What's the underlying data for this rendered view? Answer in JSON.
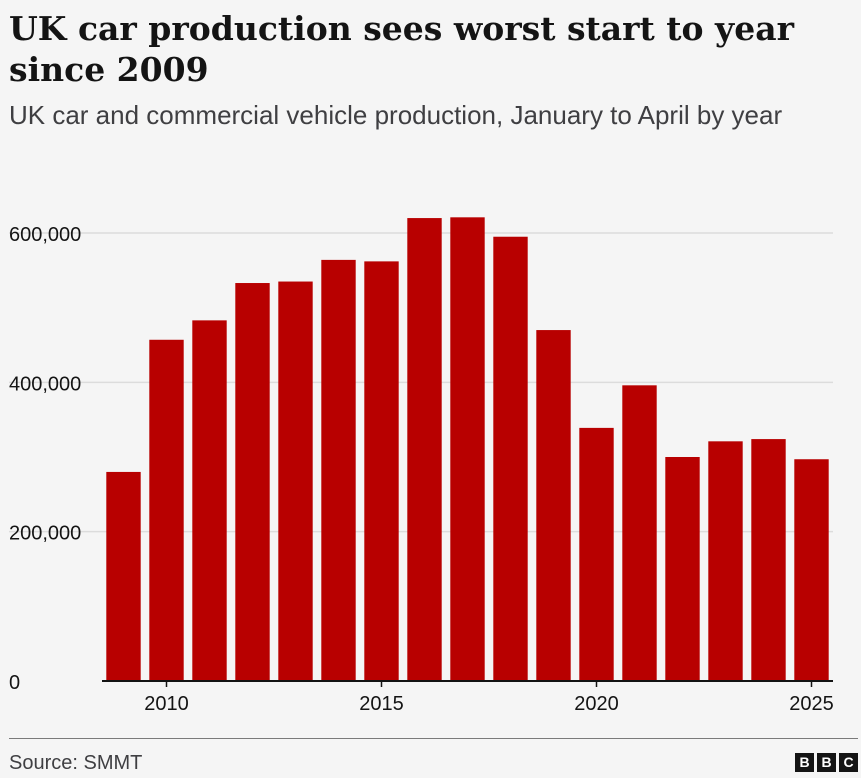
{
  "title": "UK car production sees worst start to year since 2009",
  "subtitle": "UK car and commercial vehicle production, January to April by year",
  "source": "Source: SMMT",
  "logo": {
    "letters": [
      "B",
      "B",
      "C"
    ]
  },
  "colors": {
    "bar": "#b80000",
    "grid": "#dcdcdc",
    "axis": "#141414",
    "background": "#f5f5f5"
  },
  "chart_data": {
    "type": "bar",
    "x": [
      2009,
      2010,
      2011,
      2012,
      2013,
      2014,
      2015,
      2016,
      2017,
      2018,
      2019,
      2020,
      2021,
      2022,
      2023,
      2024,
      2025
    ],
    "values": [
      280000,
      457000,
      483000,
      533000,
      535000,
      564000,
      562000,
      620000,
      621000,
      595000,
      470000,
      339000,
      396000,
      300000,
      321000,
      324000,
      297000
    ],
    "xticks": [
      2010,
      2015,
      2020,
      2025
    ],
    "xtick_labels": [
      "2010",
      "2015",
      "2020",
      "2025"
    ],
    "yticks": [
      0,
      200000,
      400000,
      600000
    ],
    "ytick_labels": [
      "0",
      "200,000",
      "400,000",
      "600,000"
    ],
    "ylim": [
      0,
      650000
    ],
    "grid": true,
    "legend": "none"
  }
}
